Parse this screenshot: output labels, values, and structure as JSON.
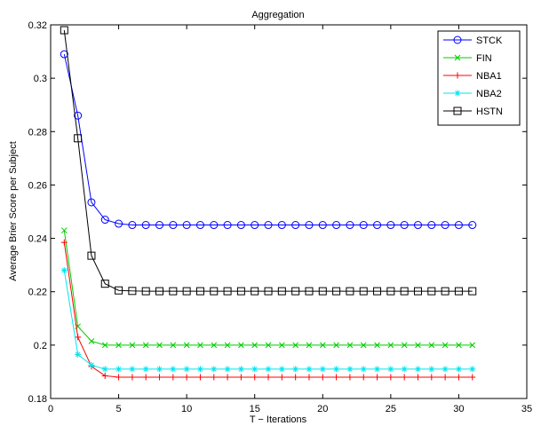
{
  "chart_data": {
    "type": "line",
    "title": "Aggregation",
    "xlabel": "T − Iterations",
    "ylabel": "Average Brier Score per Subject",
    "xlim": [
      0,
      35
    ],
    "ylim": [
      0.18,
      0.32
    ],
    "xticks": [
      0,
      5,
      10,
      15,
      20,
      25,
      30,
      35
    ],
    "yticks": [
      0.18,
      0.2,
      0.22,
      0.24,
      0.26,
      0.28,
      0.3,
      0.32
    ],
    "xtick_labels": [
      "0",
      "5",
      "10",
      "15",
      "20",
      "25",
      "30",
      "35"
    ],
    "ytick_labels": [
      "0.18",
      "0.2",
      "0.22",
      "0.24",
      "0.26",
      "0.28",
      "0.3",
      "0.32"
    ],
    "grid": false,
    "legend_position": "top-right",
    "x": [
      1,
      2,
      3,
      4,
      5,
      6,
      7,
      8,
      9,
      10,
      11,
      12,
      13,
      14,
      15,
      16,
      17,
      18,
      19,
      20,
      21,
      22,
      23,
      24,
      25,
      26,
      27,
      28,
      29,
      30,
      31
    ],
    "series": [
      {
        "name": "STCK",
        "color": "#0000ff",
        "marker": "circle",
        "values": [
          0.309,
          0.286,
          0.2535,
          0.247,
          0.2455,
          0.245,
          0.245,
          0.245,
          0.245,
          0.245,
          0.245,
          0.245,
          0.245,
          0.245,
          0.245,
          0.245,
          0.245,
          0.245,
          0.245,
          0.245,
          0.245,
          0.245,
          0.245,
          0.245,
          0.245,
          0.245,
          0.245,
          0.245,
          0.245,
          0.245,
          0.245
        ]
      },
      {
        "name": "FIN",
        "color": "#00cc00",
        "marker": "x",
        "values": [
          0.243,
          0.207,
          0.2015,
          0.2,
          0.2,
          0.2,
          0.2,
          0.2,
          0.2,
          0.2,
          0.2,
          0.2,
          0.2,
          0.2,
          0.2,
          0.2,
          0.2,
          0.2,
          0.2,
          0.2,
          0.2,
          0.2,
          0.2,
          0.2,
          0.2,
          0.2,
          0.2,
          0.2,
          0.2,
          0.2,
          0.2
        ]
      },
      {
        "name": "NBA1",
        "color": "#ff0000",
        "marker": "plus",
        "values": [
          0.2385,
          0.203,
          0.192,
          0.1885,
          0.188,
          0.188,
          0.188,
          0.188,
          0.188,
          0.188,
          0.188,
          0.188,
          0.188,
          0.188,
          0.188,
          0.188,
          0.188,
          0.188,
          0.188,
          0.188,
          0.188,
          0.188,
          0.188,
          0.188,
          0.188,
          0.188,
          0.188,
          0.188,
          0.188,
          0.188,
          0.188
        ]
      },
      {
        "name": "NBA2",
        "color": "#00e5ee",
        "marker": "star",
        "values": [
          0.228,
          0.1965,
          0.1925,
          0.191,
          0.191,
          0.191,
          0.191,
          0.191,
          0.191,
          0.191,
          0.191,
          0.191,
          0.191,
          0.191,
          0.191,
          0.191,
          0.191,
          0.191,
          0.191,
          0.191,
          0.191,
          0.191,
          0.191,
          0.191,
          0.191,
          0.191,
          0.191,
          0.191,
          0.191,
          0.191,
          0.191
        ]
      },
      {
        "name": "HSTN",
        "color": "#000000",
        "marker": "square",
        "values": [
          0.318,
          0.2775,
          0.2335,
          0.223,
          0.2205,
          0.2203,
          0.2202,
          0.2202,
          0.2202,
          0.2202,
          0.2202,
          0.2202,
          0.2202,
          0.2202,
          0.2202,
          0.2202,
          0.2202,
          0.2202,
          0.2202,
          0.2202,
          0.2202,
          0.2202,
          0.2202,
          0.2202,
          0.2202,
          0.2202,
          0.2202,
          0.2202,
          0.2202,
          0.2202,
          0.2202
        ]
      }
    ]
  }
}
